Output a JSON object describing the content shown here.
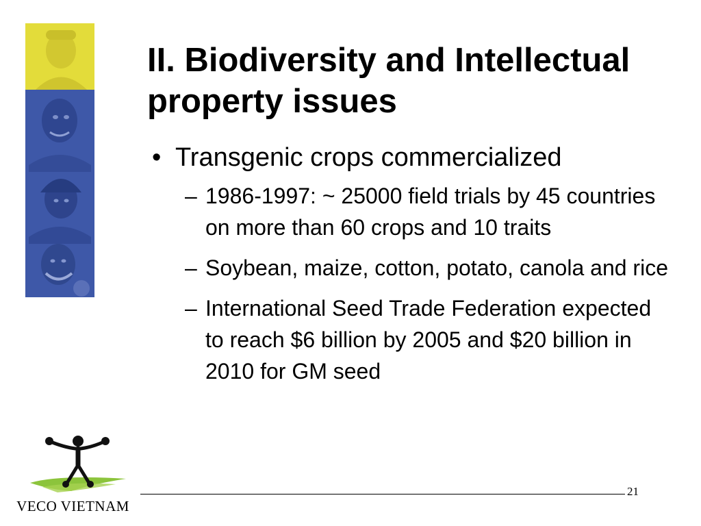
{
  "slide": {
    "title": "II. Biodiversity and Intellectual property issues",
    "bullet": "Transgenic crops commercialized",
    "sub_bullets": [
      "1986-1997: ~ 25000 field trials by 45 countries on more than 60 crops and 10 traits",
      "Soybean, maize, cotton, potato, canola and rice",
      "International Seed Trade Federation expected to reach $6 billion by 2005 and $20 billion in 2010 for GM seed"
    ],
    "page_number": "21"
  },
  "logo": {
    "text": "VECO VIETNAM",
    "icon": "person-figure-icon"
  },
  "colors": {
    "strip_yellow": "#e3dc3a",
    "strip_blue": "#3e58a8",
    "logo_green": "#8cc43c"
  }
}
